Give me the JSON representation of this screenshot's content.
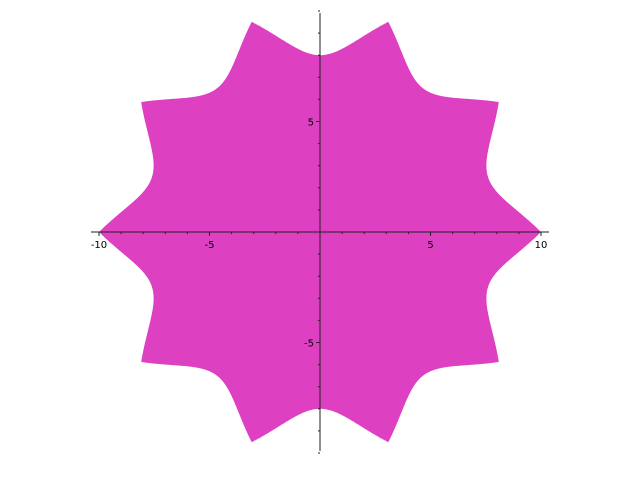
{
  "chart_data": {
    "type": "area",
    "title": "",
    "xlabel": "",
    "ylabel": "",
    "xlim": [
      -10,
      10
    ],
    "ylim": [
      -10,
      10
    ],
    "grid": false,
    "axes_origin": [
      0,
      0
    ],
    "x_major_ticks": [
      -10,
      -5,
      5,
      10
    ],
    "x_tick_labels": [
      "-10",
      "-5",
      "5",
      "10"
    ],
    "y_major_ticks": [
      -5,
      5
    ],
    "y_tick_labels": [
      "-5",
      "5"
    ],
    "minor_tick_step": 1,
    "series": [
      {
        "name": "filled epicycloid-like curve",
        "fill_color": "#dd40c0",
        "description_values": {
          "outer_radius": 10,
          "inner_radius": 8,
          "lobes": 10
        }
      }
    ]
  }
}
